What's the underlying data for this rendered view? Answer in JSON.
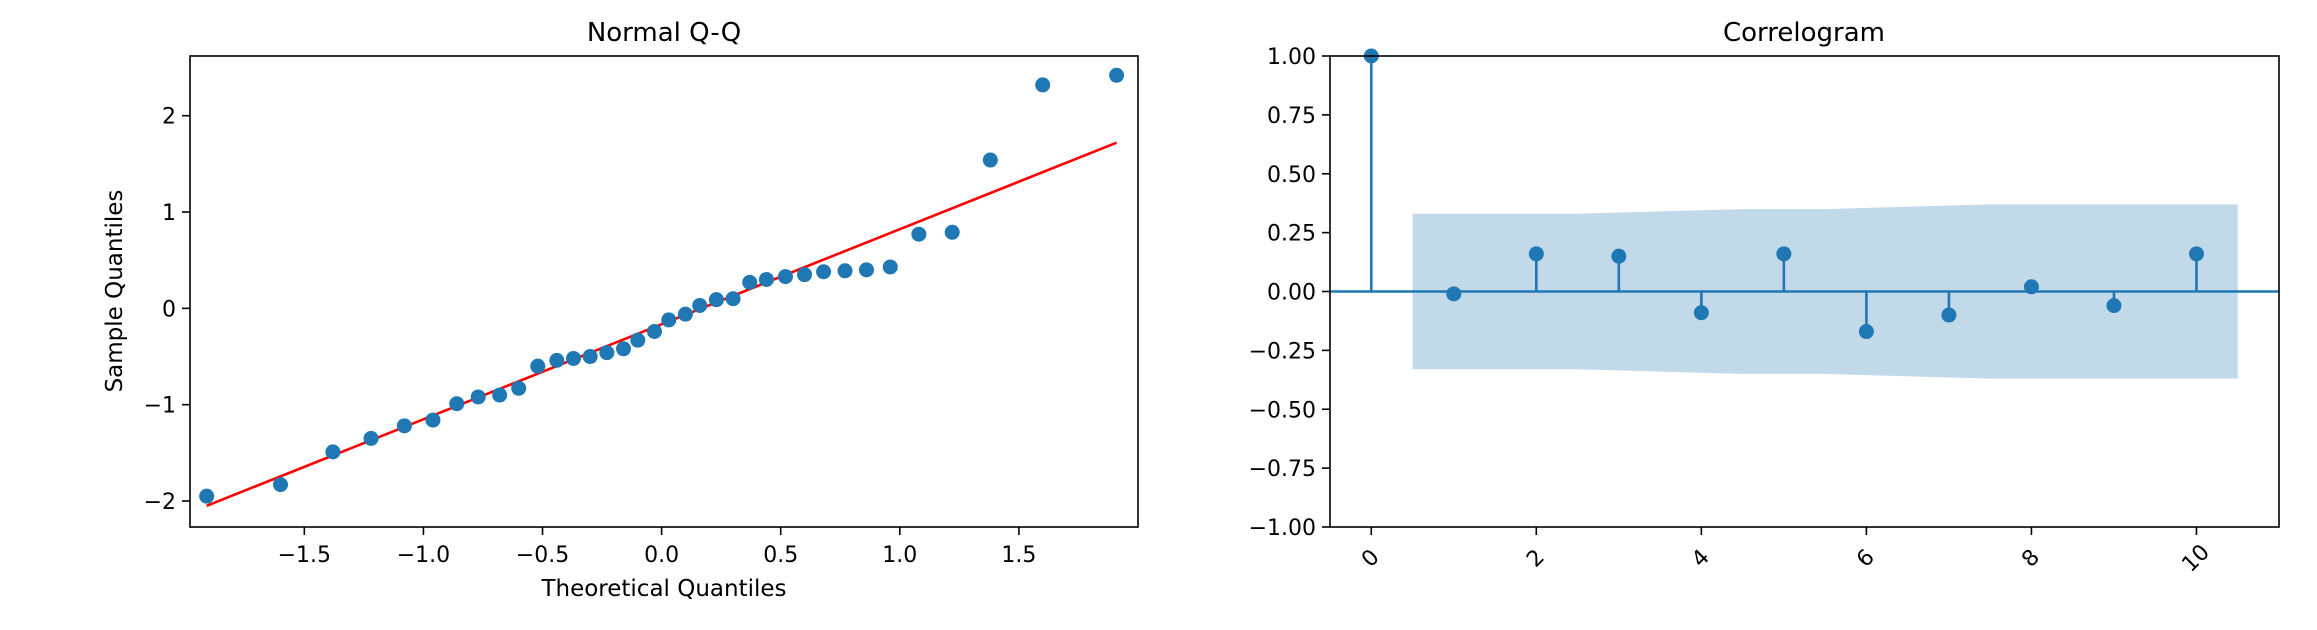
{
  "chart_data": [
    {
      "type": "scatter",
      "title": "Normal Q-Q",
      "xlabel": "Theoretical Quantiles",
      "ylabel": "Sample Quantiles",
      "xlim": [
        -1.98,
        2.0
      ],
      "ylim": [
        -2.27,
        2.62
      ],
      "xticks": [
        -1.5,
        -1.0,
        -0.5,
        0.0,
        0.5,
        1.0,
        1.5
      ],
      "xtick_labels": [
        "−1.5",
        "−1.0",
        "−0.5",
        "0.0",
        "0.5",
        "1.0",
        "1.5"
      ],
      "yticks": [
        -2,
        -1,
        0,
        1,
        2
      ],
      "ytick_labels": [
        "−2",
        "−1",
        "0",
        "1",
        "2"
      ],
      "grid": false,
      "point_color": "#1f77b4",
      "line_color": "#ff0000",
      "points": {
        "x": [
          -1.91,
          -1.6,
          -1.38,
          -1.22,
          -1.08,
          -0.96,
          -0.86,
          -0.77,
          -0.68,
          -0.6,
          -0.52,
          -0.44,
          -0.37,
          -0.3,
          -0.23,
          -0.16,
          -0.1,
          -0.03,
          0.03,
          0.1,
          0.16,
          0.23,
          0.3,
          0.37,
          0.44,
          0.52,
          0.6,
          0.68,
          0.77,
          0.86,
          0.96,
          1.08,
          1.22,
          1.38,
          1.6,
          1.91
        ],
        "y": [
          -1.95,
          -1.83,
          -1.49,
          -1.35,
          -1.22,
          -1.16,
          -0.99,
          -0.92,
          -0.9,
          -0.83,
          -0.6,
          -0.54,
          -0.52,
          -0.5,
          -0.46,
          -0.42,
          -0.33,
          -0.24,
          -0.12,
          -0.06,
          0.03,
          0.09,
          0.1,
          0.27,
          0.3,
          0.33,
          0.35,
          0.38,
          0.39,
          0.4,
          0.43,
          0.77,
          0.79,
          1.54,
          2.32,
          2.42
        ]
      },
      "reference_line": {
        "x": [
          -1.91,
          1.91
        ],
        "y": [
          -2.05,
          1.72
        ]
      }
    },
    {
      "type": "bar",
      "title": "Correlogram",
      "xlim": [
        -0.5,
        11.0
      ],
      "ylim": [
        -1.0,
        1.0
      ],
      "xticks": [
        0,
        2,
        4,
        6,
        8,
        10
      ],
      "xtick_labels": [
        "0",
        "2",
        "4",
        "6",
        "8",
        "10"
      ],
      "xtick_rotation": -45,
      "yticks": [
        -1.0,
        -0.75,
        -0.5,
        -0.25,
        0.0,
        0.25,
        0.5,
        0.75,
        1.0
      ],
      "ytick_labels": [
        "−1.00",
        "−0.75",
        "−0.50",
        "−0.25",
        "0.00",
        "0.25",
        "0.50",
        "0.75",
        "1.00"
      ],
      "grid": false,
      "stem_color": "#1f77b4",
      "band_color": "#c2d9ea",
      "lags": [
        0,
        1,
        2,
        3,
        4,
        5,
        6,
        7,
        8,
        9,
        10
      ],
      "values": [
        1.0,
        -0.01,
        0.16,
        0.15,
        -0.09,
        0.16,
        -0.17,
        -0.1,
        0.02,
        -0.06,
        0.16
      ],
      "confidence_band": {
        "x": [
          0.5,
          1.5,
          2.5,
          3.5,
          4.5,
          5.5,
          6.5,
          7.5,
          8.5,
          9.5,
          10.5
        ],
        "upper": [
          0.33,
          0.33,
          0.33,
          0.34,
          0.35,
          0.35,
          0.36,
          0.37,
          0.37,
          0.37,
          0.37
        ],
        "lower": [
          -0.33,
          -0.33,
          -0.33,
          -0.34,
          -0.35,
          -0.35,
          -0.36,
          -0.37,
          -0.37,
          -0.37,
          -0.37
        ]
      }
    }
  ]
}
